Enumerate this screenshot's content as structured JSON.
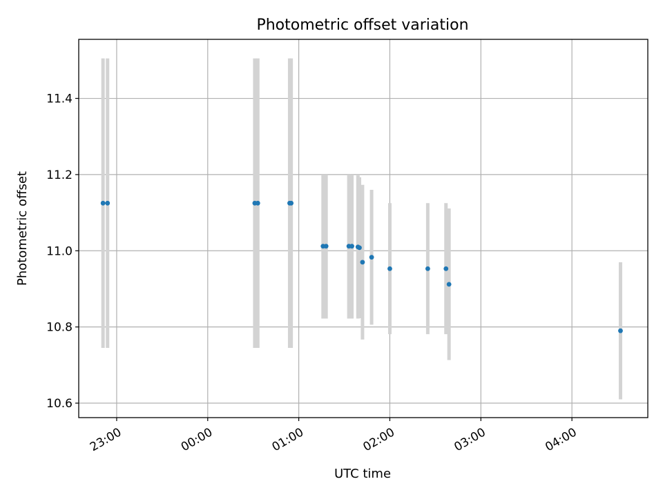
{
  "chart_data": {
    "type": "scatter",
    "title": "Photometric offset variation",
    "xlabel": "UTC time",
    "ylabel": "Photometric offset",
    "x_scale": "time",
    "xlim": [
      "22:35",
      "04:50"
    ],
    "ylim": [
      10.562,
      11.555
    ],
    "x_ticks": [
      "23:00",
      "00:00",
      "01:00",
      "02:00",
      "03:00",
      "04:00"
    ],
    "y_ticks": [
      10.6,
      10.8,
      11.0,
      11.2,
      11.4
    ],
    "y_tick_labels": [
      "10.6",
      "10.8",
      "11.0",
      "11.2",
      "11.4"
    ],
    "grid": true,
    "colors": {
      "point": "#1f77b4",
      "errorbar": "#d3d3d3",
      "grid": "#b0b0b0"
    },
    "points": [
      {
        "x": "22:51",
        "y": 11.125,
        "y_low": 10.745,
        "y_high": 11.505
      },
      {
        "x": "22:54",
        "y": 11.125,
        "y_low": 10.745,
        "y_high": 11.505
      },
      {
        "x": "00:31",
        "y": 11.125,
        "y_low": 10.745,
        "y_high": 11.505
      },
      {
        "x": "00:33",
        "y": 11.125,
        "y_low": 10.745,
        "y_high": 11.505
      },
      {
        "x": "00:54",
        "y": 11.125,
        "y_low": 10.745,
        "y_high": 11.505
      },
      {
        "x": "00:55",
        "y": 11.125,
        "y_low": 10.745,
        "y_high": 11.505
      },
      {
        "x": "01:16",
        "y": 11.012,
        "y_low": 10.822,
        "y_high": 11.2
      },
      {
        "x": "01:18",
        "y": 11.012,
        "y_low": 10.822,
        "y_high": 11.2
      },
      {
        "x": "01:33",
        "y": 11.012,
        "y_low": 10.822,
        "y_high": 11.2
      },
      {
        "x": "01:35",
        "y": 11.012,
        "y_low": 10.822,
        "y_high": 11.2
      },
      {
        "x": "01:39",
        "y": 11.01,
        "y_low": 10.822,
        "y_high": 11.198
      },
      {
        "x": "01:40",
        "y": 11.008,
        "y_low": 10.823,
        "y_high": 11.193
      },
      {
        "x": "01:42",
        "y": 10.97,
        "y_low": 10.767,
        "y_high": 11.173
      },
      {
        "x": "01:48",
        "y": 10.983,
        "y_low": 10.806,
        "y_high": 11.16
      },
      {
        "x": "02:00",
        "y": 10.953,
        "y_low": 10.781,
        "y_high": 11.125
      },
      {
        "x": "02:25",
        "y": 10.953,
        "y_low": 10.781,
        "y_high": 11.125
      },
      {
        "x": "02:37",
        "y": 10.953,
        "y_low": 10.781,
        "y_high": 11.125
      },
      {
        "x": "02:39",
        "y": 10.912,
        "y_low": 10.713,
        "y_high": 11.111
      },
      {
        "x": "04:32",
        "y": 10.79,
        "y_low": 10.61,
        "y_high": 10.97
      }
    ]
  }
}
